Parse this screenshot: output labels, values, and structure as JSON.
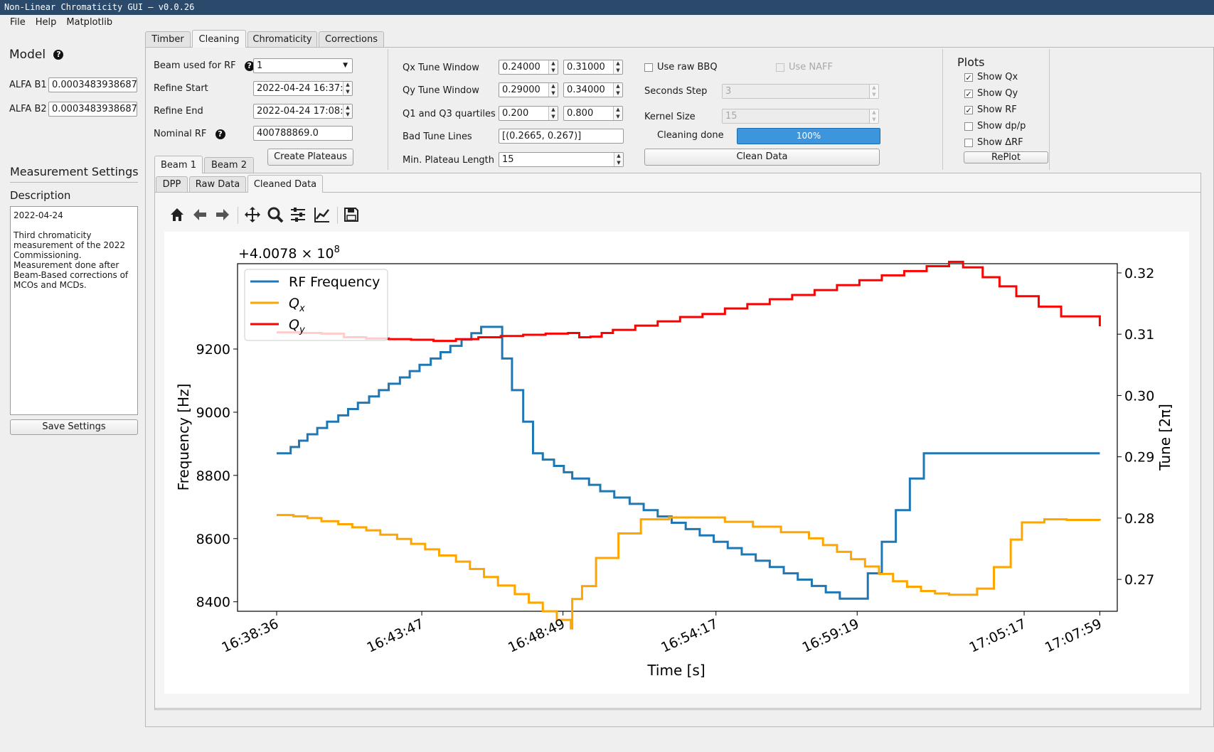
{
  "window": {
    "title": "Non-Linear Chromaticity GUI — v0.0.26"
  },
  "menu": [
    "File",
    "Help",
    "Matplotlib"
  ],
  "model": {
    "title": "Model",
    "alfa_b1_label": "ALFA B1",
    "alfa_b1_value": "0.0003483938687",
    "alfa_b2_label": "ALFA B2",
    "alfa_b2_value": "0.0003483938687"
  },
  "measurement": {
    "title": "Measurement Settings",
    "description_label": "Description",
    "description_date": "2022-04-24",
    "description_text": "Third chromaticity measurement of the 2022 Commissioning. Measurement done after Beam-Based corrections of MCOs and MCDs.",
    "save_label": "Save Settings"
  },
  "main_tabs": [
    "Timber",
    "Cleaning",
    "Chromaticity",
    "Corrections"
  ],
  "cleaning": {
    "beam_rf_label": "Beam used for RF",
    "beam_rf_value": "1",
    "refine_start_label": "Refine Start",
    "refine_start_value": "2022-04-24 16:37:3",
    "refine_end_label": "Refine End",
    "refine_end_value": "2022-04-24 17:08:0",
    "nominal_rf_label": "Nominal RF",
    "nominal_rf_value": "400788869.0",
    "create_plateaus_label": "Create Plateaus",
    "qx_window_label": "Qx Tune Window",
    "qx_window_min": "0.24000",
    "qx_window_max": "0.31000",
    "qy_window_label": "Qy Tune Window",
    "qy_window_min": "0.29000",
    "qy_window_max": "0.34000",
    "quartiles_label": "Q1 and Q3 quartiles",
    "q1": "0.200",
    "q3": "0.800",
    "bad_lines_label": "Bad Tune Lines",
    "bad_lines_value": "[(0.2665, 0.267)]",
    "min_plateau_label": "Min. Plateau Length",
    "min_plateau_value": "15",
    "use_raw_bbq_label": "Use raw BBQ",
    "use_naff_label": "Use NAFF",
    "seconds_step_label": "Seconds Step",
    "seconds_step_value": "3",
    "kernel_size_label": "Kernel Size",
    "kernel_size_value": "15",
    "cleaning_done_label": "Cleaning done",
    "cleaning_progress": 100,
    "cleaning_progress_text": "100%",
    "clean_data_label": "Clean Data"
  },
  "plots": {
    "title": "Plots",
    "show_qx": "Show Qx",
    "show_qy": "Show Qy",
    "show_rf": "Show RF",
    "show_dpp": "Show dp/p",
    "show_drf": "Show ΔRF",
    "replot": "RePlot"
  },
  "beam_tabs": [
    "Beam 1",
    "Beam 2"
  ],
  "sub_tabs": [
    "DPP",
    "Raw Data",
    "Cleaned Data"
  ],
  "toolbar_icons": [
    "home-icon",
    "back-icon",
    "forward-icon",
    "pan-icon",
    "zoom-icon",
    "configure-icon",
    "edit-curves-icon",
    "save-icon"
  ],
  "colors": {
    "rf": "#1f77b4",
    "qx": "#ffa500",
    "qy": "#ff0000"
  },
  "chart_data": {
    "type": "line",
    "offset_label": "+4.0078 × 10",
    "offset_exp": "8",
    "xlabel": "Time [s]",
    "ylabel_left": "Frequency [Hz]",
    "ylabel_right": "Tune [2π]",
    "xlim_min": [
      0,
      31.4
    ],
    "x_ticks": [
      0,
      5.18,
      10.22,
      15.68,
      20.72,
      26.68,
      29.38
    ],
    "x_tick_labels": [
      "16:38:36",
      "16:43:47",
      "16:48:49",
      "16:54:17",
      "16:59:19",
      "17:05:17",
      "17:07:59"
    ],
    "ylim_left": [
      8370,
      9470
    ],
    "y_ticks_left": [
      8400,
      8600,
      8800,
      9000,
      9200
    ],
    "ylim_right": [
      0.2648,
      0.3215
    ],
    "y_ticks_right": [
      0.27,
      0.28,
      0.29,
      0.3,
      0.31,
      0.32
    ],
    "legend": [
      "RF Frequency",
      "Qx",
      "Qy"
    ],
    "rf_t": [
      0,
      0.5,
      0.8,
      1.1,
      1.45,
      1.8,
      2.2,
      2.55,
      2.9,
      3.3,
      3.65,
      4.0,
      4.4,
      4.75,
      5.1,
      5.5,
      5.85,
      6.2,
      6.6,
      6.95,
      7.3,
      7.7,
      8.05,
      8.4,
      8.8,
      9.15,
      9.5,
      9.9,
      10.25,
      10.55,
      10.75,
      11.15,
      11.55,
      12.05,
      12.6,
      13.1,
      13.6,
      14.1,
      14.6,
      15.1,
      15.6,
      16.1,
      16.6,
      17.1,
      17.6,
      18.1,
      18.6,
      19.1,
      19.6,
      20.1,
      20.6,
      21.1,
      21.6,
      22.1,
      22.6,
      23.1,
      23.6,
      24.1,
      24.6,
      25.0,
      25.1,
      25.6,
      26.0,
      26.5,
      26.9,
      27.4,
      27.9,
      29.38
    ],
    "rf_v": [
      8870,
      8890,
      8910,
      8930,
      8950,
      8970,
      8990,
      9010,
      9030,
      9050,
      9070,
      9090,
      9110,
      9130,
      9150,
      9170,
      9190,
      9210,
      9230,
      9250,
      9270,
      9270,
      9170,
      9070,
      8970,
      8870,
      8850,
      8830,
      8810,
      8790,
      8790,
      8770,
      8750,
      8730,
      8710,
      8690,
      8670,
      8650,
      8630,
      8610,
      8590,
      8570,
      8550,
      8530,
      8510,
      8490,
      8470,
      8450,
      8430,
      8410,
      8410,
      8490,
      8590,
      8690,
      8790,
      8870,
      8870,
      8870,
      8870,
      8870,
      8870,
      8870,
      8870,
      8870,
      8870,
      8870,
      8870,
      8870
    ],
    "qx_t": [
      0,
      0.6,
      1.1,
      1.6,
      2.2,
      2.7,
      3.2,
      3.7,
      4.3,
      4.8,
      5.3,
      5.8,
      6.4,
      6.9,
      7.4,
      7.9,
      8.5,
      9.0,
      9.5,
      10.0,
      10.5,
      10.55,
      10.9,
      11.4,
      12.2,
      13.0,
      14.0,
      15.0,
      16.0,
      17.0,
      18.0,
      19.0,
      19.5,
      20.0,
      20.5,
      21.0,
      21.5,
      22.0,
      22.5,
      23.0,
      23.5,
      24.0,
      24.5,
      25.0,
      25.6,
      26.2,
      26.6,
      27.4,
      28.2,
      29.38
    ],
    "qx_v": [
      0.2805,
      0.2803,
      0.28,
      0.2795,
      0.279,
      0.2785,
      0.278,
      0.2773,
      0.2766,
      0.2758,
      0.2749,
      0.2739,
      0.2729,
      0.2717,
      0.2704,
      0.269,
      0.2676,
      0.2662,
      0.2648,
      0.2634,
      0.262,
      0.2668,
      0.2689,
      0.2735,
      0.2775,
      0.2798,
      0.2801,
      0.2801,
      0.2794,
      0.2786,
      0.2777,
      0.2767,
      0.2756,
      0.2745,
      0.2733,
      0.2721,
      0.2709,
      0.2697,
      0.2688,
      0.2681,
      0.2677,
      0.2675,
      0.2675,
      0.2685,
      0.272,
      0.2765,
      0.2793,
      0.2798,
      0.2797,
      0.2796
    ],
    "qy_t": [
      0,
      0.8,
      1.6,
      2.4,
      3.2,
      4.0,
      4.8,
      5.6,
      6.4,
      7.2,
      8.0,
      8.8,
      9.6,
      10.4,
      10.8,
      11.2,
      11.6,
      12.0,
      12.8,
      13.6,
      14.4,
      15.2,
      16.0,
      16.8,
      17.6,
      18.4,
      19.2,
      20.0,
      20.8,
      21.6,
      22.4,
      23.2,
      24.0,
      24.5,
      25.2,
      25.8,
      26.4,
      27.2,
      28.0,
      29.38
    ],
    "qy_v": [
      0.3103,
      0.3102,
      0.3101,
      0.3095,
      0.3093,
      0.3092,
      0.3091,
      0.3089,
      0.3092,
      0.3095,
      0.3097,
      0.3099,
      0.3101,
      0.3102,
      0.3095,
      0.3096,
      0.3102,
      0.3107,
      0.3114,
      0.3121,
      0.3128,
      0.3133,
      0.3142,
      0.3149,
      0.3157,
      0.3164,
      0.3172,
      0.318,
      0.3188,
      0.3196,
      0.3203,
      0.3211,
      0.3218,
      0.3209,
      0.3193,
      0.3178,
      0.3162,
      0.3145,
      0.3129,
      0.3113
    ]
  }
}
